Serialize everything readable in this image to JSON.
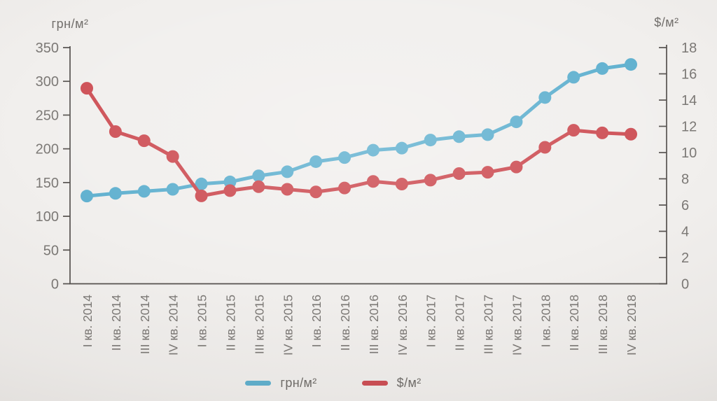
{
  "page": {
    "background": "#f1efed"
  },
  "chart_data": {
    "type": "line",
    "title": "",
    "left_axis": {
      "title": "грн/м²",
      "range": [
        0,
        350
      ],
      "ticks": [
        0,
        50,
        100,
        150,
        200,
        250,
        300,
        350
      ]
    },
    "right_axis": {
      "title": "$/м²",
      "range": [
        0,
        18
      ],
      "ticks": [
        0,
        2,
        4,
        6,
        8,
        10,
        12,
        14,
        16,
        18
      ]
    },
    "categories": [
      "I кв. 2014",
      "II кв. 2014",
      "III кв. 2014",
      "IV кв. 2014",
      "I кв. 2015",
      "II кв. 2015",
      "III кв. 2015",
      "IV кв. 2015",
      "I кв. 2016",
      "II кв. 2016",
      "III кв. 2016",
      "IV кв. 2016",
      "I кв. 2017",
      "II кв. 2017",
      "III кв. 2017",
      "IV кв. 2017",
      "I кв. 2018",
      "II кв. 2018",
      "III кв. 2018",
      "IV кв. 2018"
    ],
    "series": [
      {
        "name": "грн/м²",
        "axis": "left",
        "color": "#5fb0cf",
        "values": [
          130,
          134,
          137,
          140,
          148,
          151,
          160,
          166,
          181,
          187,
          198,
          201,
          213,
          218,
          221,
          240,
          276,
          306,
          319,
          325
        ]
      },
      {
        "name": "$/м²",
        "axis": "right",
        "color": "#cd4e54",
        "values": [
          14.9,
          11.6,
          10.9,
          9.7,
          6.7,
          7.1,
          7.4,
          7.2,
          7.0,
          7.3,
          7.8,
          7.6,
          7.9,
          8.4,
          8.5,
          8.9,
          10.4,
          11.7,
          11.5,
          11.4
        ]
      }
    ],
    "legend": {
      "position": "bottom",
      "entries": [
        "грн/м²",
        "$/м²"
      ]
    },
    "grid": false,
    "styles": {
      "axis_line_color": "#55514e",
      "tick_label_color": "#7b7875",
      "marker_radius": 9,
      "line_width": 5
    }
  }
}
